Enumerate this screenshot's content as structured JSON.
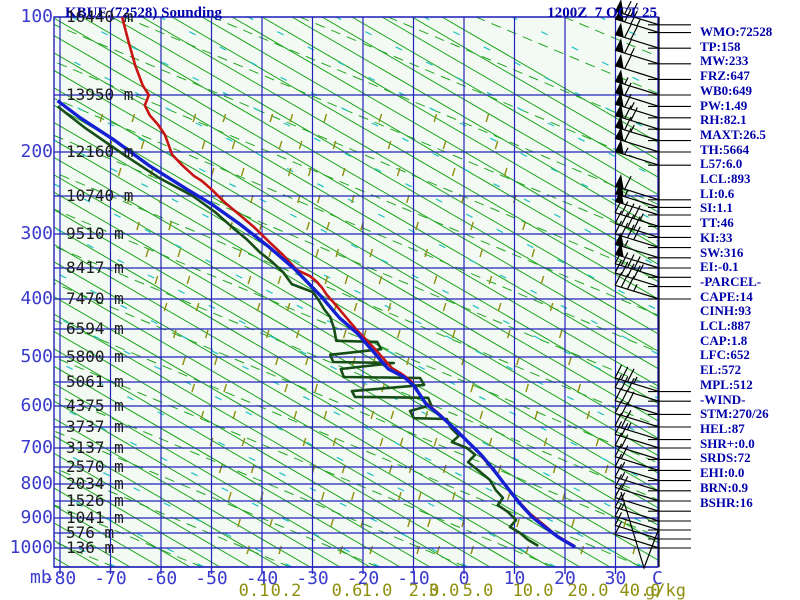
{
  "header": {
    "title": "KBUF (72528) Sounding",
    "valid_time": "1200Z  7 OCT 25"
  },
  "panel": {
    "lines": [
      "WMO:72528",
      "TP:158",
      "MW:233",
      "FRZ:647",
      "WB0:649",
      "PW:1.49",
      "RH:82.1",
      "MAXT:26.5",
      "TH:5664",
      "L57:6.0",
      "LCL:893",
      "LI:0.6",
      "SI:1.1",
      "TT:46",
      "KI:33",
      "SW:316",
      "EI:-0.1",
      "-PARCEL-",
      "CAPE:14",
      "CINH:93",
      "LCL:887",
      "CAP:1.8",
      "LFC:652",
      "EL:572",
      "MPL:512",
      "-WIND-",
      "STM:270/26",
      "HEL:87",
      "SHR+:0.0",
      "SRDS:72",
      "EHI:0.0",
      "BRN:0.9",
      "BSHR:16"
    ]
  },
  "chart_data": {
    "type": "line",
    "title": "KBUF (72528) Sounding",
    "subtitle": "1200Z 7 OCT 25",
    "xlabel_unit_left": "mb",
    "xlabel_unit_right": "C",
    "mixing_unit": "g/kg",
    "x_axis": {
      "ticks": [
        -80,
        -70,
        -60,
        -50,
        -40,
        -30,
        -20,
        -10,
        0,
        10,
        20,
        30
      ]
    },
    "mixing_ratio_ticks": [
      "0.1",
      "0.2",
      "0.6",
      "1.0",
      "2.0",
      "3.0",
      "5.0",
      "10.0",
      "20.0",
      "40.0"
    ],
    "pressure_levels": [
      {
        "p": 100,
        "alt": "16440 m"
      },
      {
        "p": 150,
        "alt": "13950 m"
      },
      {
        "p": 200,
        "alt": "12160 m"
      },
      {
        "p": 250,
        "alt": "10740 m"
      },
      {
        "p": 300,
        "alt": "9510 m"
      },
      {
        "p": 350,
        "alt": "8417 m"
      },
      {
        "p": 400,
        "alt": "7470 m"
      },
      {
        "p": 450,
        "alt": "6594 m"
      },
      {
        "p": 500,
        "alt": "5800 m"
      },
      {
        "p": 550,
        "alt": "5061 m"
      },
      {
        "p": 600,
        "alt": "4375 m"
      },
      {
        "p": 650,
        "alt": "3737 m"
      },
      {
        "p": 700,
        "alt": "3137 m"
      },
      {
        "p": 750,
        "alt": "2570 m"
      },
      {
        "p": 800,
        "alt": "2034 m"
      },
      {
        "p": 850,
        "alt": "1526 m"
      },
      {
        "p": 900,
        "alt": "1041 m"
      },
      {
        "p": 950,
        "alt": "576 m"
      },
      {
        "p": 1000,
        "alt": "136 m"
      }
    ],
    "pressure_axis_labels": [
      100,
      200,
      300,
      400,
      500,
      600,
      700,
      800,
      900,
      1000
    ],
    "series": [
      {
        "name": "dewpoint",
        "color": "#174d17",
        "width": 2.6,
        "points": [
          [
            160,
            -80.5
          ],
          [
            179,
            -75.0
          ],
          [
            204,
            -67.1
          ],
          [
            230,
            -60.2
          ],
          [
            250,
            -53.7
          ],
          [
            271,
            -49.3
          ],
          [
            291,
            -45.9
          ],
          [
            308,
            -43.0
          ],
          [
            327,
            -40.4
          ],
          [
            341,
            -38.0
          ],
          [
            357,
            -35.8
          ],
          [
            376,
            -34.1
          ],
          [
            389,
            -29.9
          ],
          [
            403,
            -28.7
          ],
          [
            417,
            -27.7
          ],
          [
            430,
            -26.5
          ],
          [
            450,
            -25.7
          ],
          [
            471,
            -25.3
          ],
          [
            473,
            -17.2
          ],
          [
            486,
            -16.4
          ],
          [
            496,
            -26.5
          ],
          [
            510,
            -25.9
          ],
          [
            512,
            -13.9
          ],
          [
            524,
            -24.4
          ],
          [
            540,
            -23.8
          ],
          [
            542,
            -8.7
          ],
          [
            556,
            -7.9
          ],
          [
            569,
            -22.2
          ],
          [
            581,
            -21.6
          ],
          [
            583,
            -7.1
          ],
          [
            598,
            -6.5
          ],
          [
            612,
            -10.7
          ],
          [
            629,
            -9.9
          ],
          [
            631,
            -3.4
          ],
          [
            652,
            -2.6
          ],
          [
            671,
            -1.0
          ],
          [
            686,
            -2.4
          ],
          [
            700,
            0.6
          ],
          [
            718,
            2.2
          ],
          [
            737,
            0.8
          ],
          [
            759,
            2.8
          ],
          [
            788,
            5.1
          ],
          [
            818,
            6.3
          ],
          [
            841,
            7.7
          ],
          [
            862,
            6.7
          ],
          [
            882,
            8.7
          ],
          [
            907,
            10.3
          ],
          [
            930,
            9.1
          ],
          [
            950,
            11.1
          ],
          [
            973,
            12.7
          ],
          [
            993,
            14.7
          ]
        ]
      },
      {
        "name": "temperature",
        "color": "#c81414",
        "width": 2.6,
        "points": [
          [
            100,
            -67.7
          ],
          [
            115,
            -66.5
          ],
          [
            131,
            -65.1
          ],
          [
            144,
            -63.6
          ],
          [
            150,
            -62.4
          ],
          [
            159,
            -63.2
          ],
          [
            168,
            -62.2
          ],
          [
            176,
            -60.6
          ],
          [
            185,
            -59.2
          ],
          [
            195,
            -58.4
          ],
          [
            203,
            -57.8
          ],
          [
            215,
            -55.8
          ],
          [
            227,
            -53.5
          ],
          [
            233,
            -51.9
          ],
          [
            243,
            -49.9
          ],
          [
            259,
            -47.3
          ],
          [
            275,
            -44.4
          ],
          [
            292,
            -41.4
          ],
          [
            313,
            -38.4
          ],
          [
            331,
            -35.8
          ],
          [
            353,
            -33.1
          ],
          [
            363,
            -30.5
          ],
          [
            371,
            -29.3
          ],
          [
            382,
            -28.1
          ],
          [
            394,
            -27.1
          ],
          [
            405,
            -25.9
          ],
          [
            428,
            -23.6
          ],
          [
            452,
            -21.2
          ],
          [
            484,
            -17.8
          ],
          [
            522,
            -14.3
          ],
          [
            534,
            -12.3
          ],
          [
            548,
            -10.5
          ],
          [
            590,
            -7.9
          ],
          [
            617,
            -5.1
          ],
          [
            650,
            -2.2
          ],
          [
            681,
            0.4
          ],
          [
            711,
            2.8
          ],
          [
            747,
            5.1
          ],
          [
            785,
            7.3
          ],
          [
            824,
            9.3
          ],
          [
            856,
            11.1
          ],
          [
            888,
            13.1
          ],
          [
            920,
            15.6
          ],
          [
            957,
            18.2
          ],
          [
            993,
            21.8
          ]
        ]
      },
      {
        "name": "virtual-temperature",
        "color": "#1520d2",
        "width": 3.4,
        "points": [
          [
            155,
            -80.5
          ],
          [
            170,
            -76.0
          ],
          [
            190,
            -69.1
          ],
          [
            216,
            -62.2
          ],
          [
            243,
            -54.7
          ],
          [
            261,
            -49.9
          ],
          [
            287,
            -44.4
          ],
          [
            318,
            -38.8
          ],
          [
            352,
            -33.5
          ],
          [
            394,
            -28.5
          ],
          [
            432,
            -24.6
          ],
          [
            457,
            -21.2
          ],
          [
            488,
            -18.2
          ],
          [
            524,
            -15.0
          ],
          [
            540,
            -11.9
          ],
          [
            558,
            -9.9
          ],
          [
            596,
            -7.5
          ],
          [
            624,
            -4.6
          ],
          [
            657,
            -1.6
          ],
          [
            688,
            1.0
          ],
          [
            718,
            3.4
          ],
          [
            755,
            5.7
          ],
          [
            794,
            7.7
          ],
          [
            832,
            9.7
          ],
          [
            865,
            11.5
          ],
          [
            897,
            13.5
          ],
          [
            930,
            16.0
          ],
          [
            963,
            18.6
          ],
          [
            997,
            22.0
          ]
        ]
      }
    ],
    "wind_barbs": {
      "unit": "kt",
      "direction": 270,
      "levels": [
        [
          105,
          70
        ],
        [
          110,
          75
        ],
        [
          120,
          70
        ],
        [
          130,
          65
        ],
        [
          140,
          60
        ],
        [
          150,
          55
        ],
        [
          160,
          60
        ],
        [
          170,
          65
        ],
        [
          180,
          70
        ],
        [
          190,
          65
        ],
        [
          200,
          60
        ],
        [
          215,
          55
        ],
        [
          255,
          60
        ],
        [
          265,
          55
        ],
        [
          275,
          50
        ],
        [
          290,
          45
        ],
        [
          305,
          40
        ],
        [
          320,
          40
        ],
        [
          335,
          55
        ],
        [
          350,
          50
        ],
        [
          365,
          45
        ],
        [
          380,
          40
        ],
        [
          400,
          35
        ],
        [
          570,
          35
        ],
        [
          590,
          30
        ],
        [
          620,
          30
        ],
        [
          650,
          25
        ],
        [
          680,
          25
        ],
        [
          700,
          20
        ],
        [
          730,
          20
        ],
        [
          760,
          20
        ],
        [
          790,
          15
        ],
        [
          820,
          15
        ],
        [
          850,
          20
        ],
        [
          880,
          15
        ],
        [
          910,
          15
        ],
        [
          940,
          10
        ],
        [
          970,
          10
        ],
        [
          1000,
          10
        ]
      ]
    },
    "colors": {
      "grid": "#2323bb",
      "dry_adiabat": "#1ea51e",
      "moist_adiabat": "#23a623",
      "isohume_cyan": "#2cc4c4",
      "mixing_olive": "#8f8f10",
      "plot_bg": "#f3faf3",
      "temperature": "#c81414",
      "virtual": "#1520d2",
      "dewpoint": "#174d17",
      "barbs": "#000000"
    }
  }
}
